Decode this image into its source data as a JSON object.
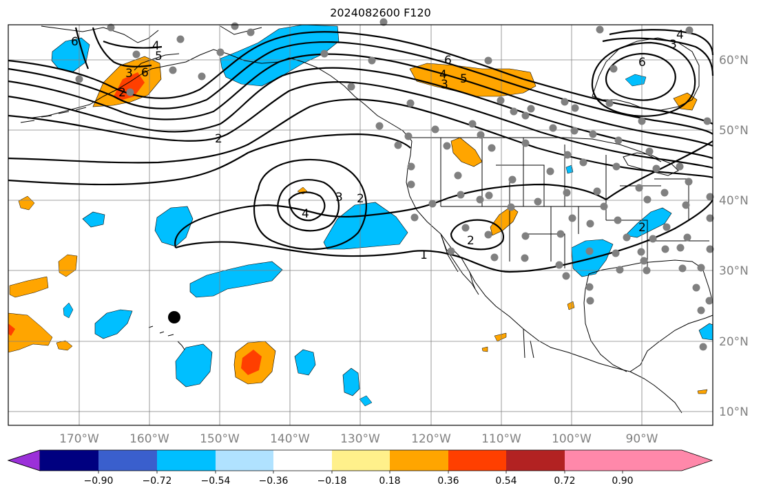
{
  "title": "2024082600 F120",
  "lon_labels": [
    "170°W",
    "160°W",
    "150°W",
    "140°W",
    "130°W",
    "120°W",
    "110°W",
    "100°W",
    "90°W"
  ],
  "lat_labels": [
    "60°N",
    "50°N",
    "40°N",
    "30°N",
    "20°N",
    "10°N"
  ],
  "colorbar": {
    "tick_labels": [
      "−0.90",
      "−0.72",
      "−0.54",
      "−0.36",
      "−0.18",
      "0.18",
      "0.36",
      "0.54",
      "0.72",
      "0.90"
    ],
    "colors": [
      "#9b30d9",
      "#000080",
      "#3a5fcd",
      "#00bfff",
      "#b0e2ff",
      "#ffffff",
      "#fff08b",
      "#ffa500",
      "#ff3f00",
      "#b22222",
      "#ff88aa"
    ]
  },
  "contour_labels": [
    "6",
    "4",
    "5",
    "6",
    "3",
    "4",
    "5",
    "6",
    "2",
    "3",
    "4",
    "2",
    "1",
    "2",
    "3",
    "4",
    "2",
    "6",
    "3",
    "2"
  ],
  "colors": {
    "positive_mid": "#ffa500",
    "positive_high": "#ff3f00",
    "negative_mid": "#00bfff",
    "station_dots": "#808080"
  }
}
